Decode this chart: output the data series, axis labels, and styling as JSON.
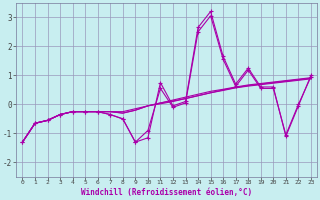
{
  "title": "",
  "xlabel": "Windchill (Refroidissement éolien,°C)",
  "ylabel": "",
  "xlim": [
    -0.5,
    23.5
  ],
  "ylim": [
    -2.5,
    3.5
  ],
  "yticks": [
    -2,
    -1,
    0,
    1,
    2,
    3
  ],
  "xticks": [
    0,
    1,
    2,
    3,
    4,
    5,
    6,
    7,
    8,
    9,
    10,
    11,
    12,
    13,
    14,
    15,
    16,
    17,
    18,
    19,
    20,
    21,
    22,
    23
  ],
  "bg_color": "#c8eef0",
  "line_color": "#aa00aa",
  "grid_color": "#9999bb",
  "series": [
    [
      -1.3,
      -0.65,
      -0.55,
      -0.35,
      -0.25,
      -0.25,
      -0.25,
      -0.35,
      -0.5,
      -1.3,
      -1.15,
      0.75,
      -0.05,
      0.1,
      2.65,
      3.2,
      1.65,
      0.7,
      1.25,
      0.6,
      0.6,
      -1.1,
      -0.05,
      1.0
    ],
    [
      -1.3,
      -0.65,
      -0.55,
      -0.35,
      -0.25,
      -0.25,
      -0.25,
      -0.25,
      -0.25,
      -0.15,
      -0.05,
      0.05,
      0.12,
      0.2,
      0.3,
      0.4,
      0.5,
      0.58,
      0.65,
      0.7,
      0.75,
      0.8,
      0.85,
      0.9
    ],
    [
      -1.3,
      -0.65,
      -0.55,
      -0.35,
      -0.25,
      -0.25,
      -0.25,
      -0.25,
      -0.3,
      -0.2,
      -0.05,
      0.05,
      0.15,
      0.25,
      0.35,
      0.45,
      0.52,
      0.6,
      0.67,
      0.72,
      0.77,
      0.82,
      0.87,
      0.92
    ],
    [
      -1.3,
      -0.65,
      -0.55,
      -0.35,
      -0.25,
      -0.25,
      -0.25,
      -0.25,
      -0.3,
      -0.2,
      -0.05,
      0.02,
      0.1,
      0.2,
      0.3,
      0.4,
      0.48,
      0.57,
      0.63,
      0.68,
      0.73,
      0.78,
      0.83,
      0.88
    ],
    [
      -1.3,
      -0.65,
      -0.55,
      -0.35,
      -0.25,
      -0.25,
      -0.25,
      -0.35,
      -0.5,
      -1.3,
      -0.9,
      0.55,
      -0.1,
      0.05,
      2.5,
      3.05,
      1.55,
      0.62,
      1.18,
      0.55,
      0.55,
      -1.05,
      -0.0,
      0.95
    ]
  ]
}
